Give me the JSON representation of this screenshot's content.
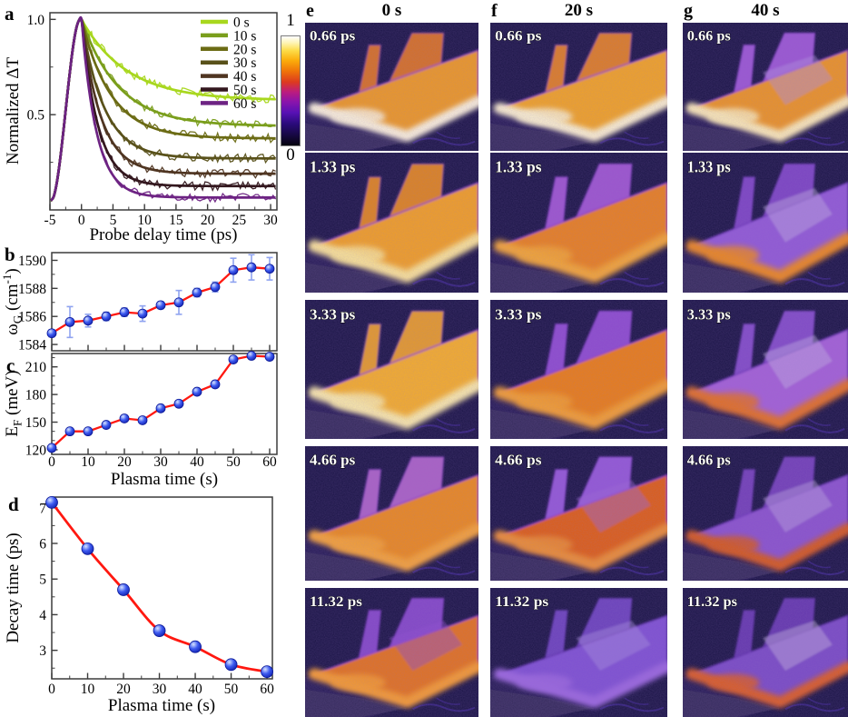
{
  "panel_letters": {
    "a": "a",
    "b": "b",
    "c": "c",
    "d": "d"
  },
  "colorbar": {
    "top_label": "1",
    "bottom_label": "0",
    "stops": [
      "#05030E 0%",
      "#160840 9%",
      "#2B0B7C 20%",
      "#5711B4 30%",
      "#8A14AC 40%",
      "#BC1C7E 49%",
      "#DC3A20 58%",
      "#EF7409 68%",
      "#FBAD0B 78%",
      "#FDDC48 87%",
      "#FEF4B4 94%",
      "#FFFFFF 100%"
    ]
  },
  "chart_data": [
    {
      "id": "a",
      "type": "line",
      "xlabel": "Probe delay time (ps)",
      "ylabel": "Normalized ΔT",
      "xlim": [
        -5,
        31
      ],
      "ylim": [
        0,
        1.035
      ],
      "xticks": [
        -5,
        0,
        5,
        10,
        15,
        20,
        25,
        30
      ],
      "xminor": 2.5,
      "yticks": [
        0.5,
        1.0
      ],
      "ytick_labels": [
        "0.5",
        "1.0"
      ],
      "yminor": 0.25,
      "legend_position": "top-right",
      "series": [
        {
          "name": "0 s",
          "color": "#A8D71E",
          "peak": 1.0,
          "plateau_at_30ps": 0.575,
          "decay_tau_ps": 7.2
        },
        {
          "name": "10 s",
          "color": "#7A9E1C",
          "peak": 1.0,
          "plateau_at_30ps": 0.44,
          "decay_tau_ps": 5.9
        },
        {
          "name": "20 s",
          "color": "#6B6B14",
          "peak": 1.0,
          "plateau_at_30ps": 0.375,
          "decay_tau_ps": 4.7
        },
        {
          "name": "30 s",
          "color": "#59511A",
          "peak": 1.0,
          "plateau_at_30ps": 0.27,
          "decay_tau_ps": 3.6
        },
        {
          "name": "40 s",
          "color": "#4F3521",
          "peak": 1.0,
          "plateau_at_30ps": 0.19,
          "decay_tau_ps": 3.1
        },
        {
          "name": "50 s",
          "color": "#33171E",
          "peak": 1.0,
          "plateau_at_30ps": 0.125,
          "decay_tau_ps": 2.6
        },
        {
          "name": "60 s",
          "color": "#6D2383",
          "peak": 1.0,
          "plateau_at_30ps": 0.065,
          "decay_tau_ps": 2.4
        }
      ]
    },
    {
      "id": "b",
      "type": "scatter-line",
      "ylabel_segments": [
        [
          "ω",
          ""
        ],
        [
          "G",
          "sub"
        ],
        [
          " (cm",
          ""
        ],
        [
          "-1",
          "sup"
        ],
        [
          ")",
          ""
        ]
      ],
      "x": [
        0,
        5,
        10,
        15,
        20,
        25,
        30,
        35,
        40,
        45,
        50,
        55,
        60
      ],
      "y": [
        1584.8,
        1585.6,
        1585.7,
        1586.0,
        1586.3,
        1586.2,
        1586.8,
        1587.0,
        1587.7,
        1588.1,
        1589.3,
        1589.5,
        1589.4
      ],
      "yerr": [
        0.25,
        1.1,
        0.45,
        0.3,
        0.3,
        0.55,
        0.25,
        0.85,
        0.3,
        0.35,
        0.85,
        0.9,
        0.8
      ],
      "xlim": [
        0,
        62
      ],
      "ylim": [
        1583.55,
        1590.55
      ],
      "xticks": [
        0,
        10,
        20,
        30,
        40,
        50,
        60
      ],
      "xtick_labels_shown": false,
      "xminor": 5,
      "yticks": [
        1584,
        1586,
        1588,
        1590
      ],
      "yminor": 1,
      "line_color": "#FF1810",
      "marker": "blue-sphere",
      "marker_r": 5,
      "error_color": "#8FA3F0"
    },
    {
      "id": "c",
      "type": "scatter-line",
      "xlabel": "Plasma time (s)",
      "ylabel_segments": [
        [
          "E",
          ""
        ],
        [
          "F",
          "sub"
        ],
        [
          " (meV)",
          ""
        ]
      ],
      "x": [
        0,
        5,
        10,
        15,
        20,
        25,
        30,
        35,
        40,
        45,
        50,
        55,
        60
      ],
      "y": [
        122,
        140,
        140,
        147,
        154,
        152,
        165,
        170,
        183,
        191,
        218,
        222,
        221
      ],
      "xlim": [
        0,
        62
      ],
      "ylim": [
        115,
        224.5
      ],
      "xticks": [
        0,
        10,
        20,
        30,
        40,
        50,
        60
      ],
      "xtick_labels_shown": true,
      "xminor": 5,
      "yticks": [
        120,
        150,
        180,
        210
      ],
      "yminor": 10,
      "line_color": "#FF1810",
      "marker": "blue-sphere",
      "marker_r": 5
    },
    {
      "id": "d",
      "type": "scatter-line",
      "xlabel": "Plasma time (s)",
      "ylabel": "Decay time (ps)",
      "x": [
        0,
        10,
        20,
        30,
        40,
        50,
        60
      ],
      "y": [
        7.15,
        5.85,
        4.7,
        3.55,
        3.1,
        2.6,
        2.4
      ],
      "xlim": [
        0,
        61.5
      ],
      "ylim": [
        2.2,
        7.3
      ],
      "xticks": [
        0,
        10,
        20,
        30,
        40,
        50,
        60
      ],
      "xtick_labels_shown": true,
      "xminor": 5,
      "yticks": [
        3,
        4,
        5,
        6,
        7
      ],
      "yminor": 0.5,
      "smooth": true,
      "line_color": "#FF1810",
      "marker": "blue-sphere",
      "marker_r": 6.5
    }
  ],
  "image_grid": {
    "bg": "#151040",
    "substrate": "#241A52",
    "scratch_color": "#4A2BB0",
    "columns": [
      {
        "letter": "e",
        "title": "0 s"
      },
      {
        "letter": "f",
        "title": "20 s"
      },
      {
        "letter": "g",
        "title": "40 s"
      }
    ],
    "rows": [
      {
        "time": "0.66 ps",
        "cells": [
          {
            "body": "#F09A1E",
            "strip": "#D8701C",
            "glow": "#FFF7D8",
            "fringe": "#8A35D8",
            "patch": ""
          },
          {
            "body": "#F5A51F",
            "strip": "#E07E1C",
            "glow": "#FFF6CC",
            "fringe": "#8A35D8",
            "patch": ""
          },
          {
            "body": "#EF951D",
            "strip": "#9A55D2",
            "glow": "#FFEFB2",
            "fringe": "#8A35D8",
            "patch": "#B490E0"
          }
        ]
      },
      {
        "time": "1.33 ps",
        "cells": [
          {
            "body": "#F5A11E",
            "strip": "#E08418",
            "glow": "#FFE992",
            "fringe": "#8A35D8",
            "patch": ""
          },
          {
            "body": "#EC8113",
            "strip": "#9C52CE",
            "glow": "#F8A82C",
            "fringe": "#8A35D8",
            "patch": ""
          },
          {
            "body": "#9058D5",
            "strip": "#7A42C2",
            "glow": "#EF8818",
            "fringe": "#6A30B8",
            "patch": "#C4B2E2"
          }
        ]
      },
      {
        "time": "3.33 ps",
        "cells": [
          {
            "body": "#F9B022",
            "strip": "#E89C20",
            "glow": "#FFF0A6",
            "fringe": "#8A35D8",
            "patch": ""
          },
          {
            "body": "#ED7E10",
            "strip": "#8C4ACE",
            "glow": "#F7A028",
            "fringe": "#8A35D8",
            "patch": ""
          },
          {
            "body": "#A35FD6",
            "strip": "#8048C6",
            "glow": "#E5701A",
            "fringe": "#6A30B8",
            "patch": "#C6B4E4"
          }
        ]
      },
      {
        "time": "4.66 ps",
        "cells": [
          {
            "body": "#EE8A13",
            "strip": "#AA60C4",
            "glow": "#F9A42E",
            "fringe": "#8A35D8",
            "patch": ""
          },
          {
            "body": "#E05D0E",
            "strip": "#9256D6",
            "glow": "#EF8E2A",
            "fringe": "#8A35D8",
            "patch": "#9B63D8"
          },
          {
            "body": "#8951CC",
            "strip": "#6F3DB6",
            "glow": "#D65818",
            "fringe": "#6A30B8",
            "patch": "#BFA9E0"
          }
        ]
      },
      {
        "time": "11.32 ps",
        "cells": [
          {
            "body": "#E57213",
            "strip": "#8244C6",
            "glow": "#F99C26",
            "fringe": "#8A35D8",
            "patch": "#8E4CCE"
          },
          {
            "body": "#7D50D2",
            "strip": "#6940BB",
            "glow": "#9A66DE",
            "fringe": "#5A28A8",
            "patch": "#A98FE0"
          },
          {
            "body": "#7848C4",
            "strip": "#6236AC",
            "glow": "#DD5B1D",
            "fringe": "#5A28A8",
            "patch": "#C8B8E0"
          }
        ]
      }
    ]
  }
}
